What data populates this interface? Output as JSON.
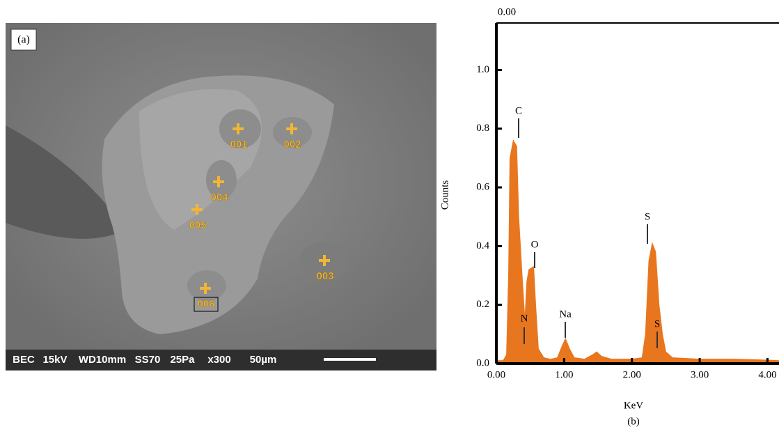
{
  "image": {
    "label": "(a)",
    "points": [
      "001",
      "002",
      "004",
      "005",
      "003",
      "006"
    ],
    "info_bar": [
      "BEC",
      "15kV",
      "WD10mm",
      "SS70",
      "25Pa",
      "x300",
      "50µm"
    ]
  },
  "chart_data": {
    "type": "area",
    "corner_label": "0.00",
    "caption": "(b)",
    "x_label": "KeV",
    "y_label": "Counts",
    "color": "#e8761e",
    "x": [
      0,
      0.1,
      0.15,
      0.18,
      0.2,
      0.25,
      0.3,
      0.33,
      0.38,
      0.42,
      0.45,
      0.48,
      0.55,
      0.58,
      0.62,
      0.7,
      0.8,
      0.9,
      0.97,
      1.02,
      1.08,
      1.15,
      1.3,
      1.42,
      1.48,
      1.55,
      1.7,
      2.0,
      2.15,
      2.2,
      2.25,
      2.3,
      2.35,
      2.4,
      2.45,
      2.5,
      2.6,
      3.0,
      3.5,
      4.0,
      4.17
    ],
    "values": [
      0.01,
      0.01,
      0.03,
      0.3,
      0.7,
      0.76,
      0.74,
      0.5,
      0.3,
      0.15,
      0.28,
      0.32,
      0.33,
      0.2,
      0.05,
      0.02,
      0.015,
      0.02,
      0.06,
      0.085,
      0.05,
      0.02,
      0.015,
      0.03,
      0.04,
      0.025,
      0.015,
      0.015,
      0.02,
      0.1,
      0.35,
      0.41,
      0.38,
      0.2,
      0.1,
      0.04,
      0.02,
      0.015,
      0.015,
      0.012,
      0.01
    ],
    "peak_labels": [
      "C",
      "O",
      "N",
      "Na",
      "S",
      "S"
    ],
    "xlim": [
      0,
      4.17
    ],
    "ylim": [
      0,
      1.16
    ],
    "xticks": [
      {
        "value": 0,
        "label": "0.00"
      },
      {
        "value": 1,
        "label": "1.00"
      },
      {
        "value": 2,
        "label": "2.00"
      },
      {
        "value": 3,
        "label": "3.00"
      },
      {
        "value": 4,
        "label": "4.00"
      }
    ],
    "yticks": [
      {
        "value": 0,
        "label": "0.0"
      },
      0.2,
      0.4,
      0.6,
      0.8,
      {
        "value": 1,
        "label": "1.0"
      }
    ]
  }
}
